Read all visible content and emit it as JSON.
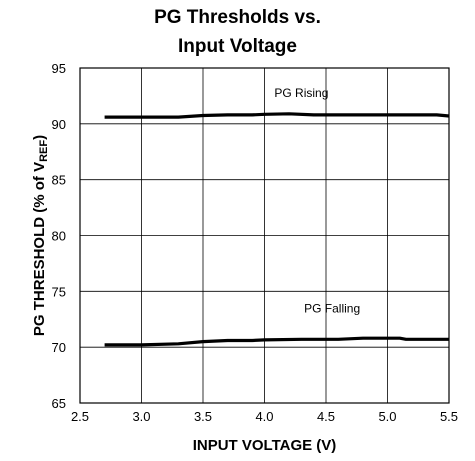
{
  "chart_data": {
    "type": "line",
    "title_line1": "PG Thresholds vs.",
    "title_line2": "Input Voltage",
    "xlabel": "INPUT VOLTAGE (V)",
    "ylabel_main": "PG THRESHOLD (% of V",
    "ylabel_sub": "REF",
    "ylabel_close": ")",
    "xlim": [
      2.5,
      5.5
    ],
    "ylim": [
      65,
      95
    ],
    "xticks": [
      "2.5",
      "3.0",
      "3.5",
      "4.0",
      "4.5",
      "5.0",
      "5.5"
    ],
    "yticks": [
      "65",
      "70",
      "75",
      "80",
      "85",
      "90",
      "95"
    ],
    "grid": true,
    "annotations": [
      {
        "text": "PG Rising",
        "x": 4.3,
        "y": 92.4
      },
      {
        "text": "PG Falling",
        "x": 4.55,
        "y": 73.1
      }
    ],
    "series": [
      {
        "x": [
          2.7,
          3.0,
          3.3,
          3.5,
          3.7,
          3.9,
          4.0,
          4.2,
          4.4,
          4.6,
          4.8,
          5.0,
          5.2,
          5.4,
          5.5
        ],
        "y": [
          90.6,
          90.6,
          90.6,
          90.75,
          90.8,
          90.8,
          90.85,
          90.9,
          90.8,
          90.8,
          90.8,
          90.8,
          90.8,
          90.8,
          90.7
        ]
      },
      {
        "x": [
          2.7,
          3.0,
          3.3,
          3.5,
          3.7,
          3.9,
          4.0,
          4.3,
          4.6,
          4.8,
          5.0,
          5.1,
          5.15,
          5.3,
          5.5
        ],
        "y": [
          70.2,
          70.2,
          70.3,
          70.5,
          70.6,
          70.6,
          70.65,
          70.7,
          70.7,
          70.8,
          70.8,
          70.8,
          70.7,
          70.7,
          70.7
        ]
      }
    ]
  }
}
